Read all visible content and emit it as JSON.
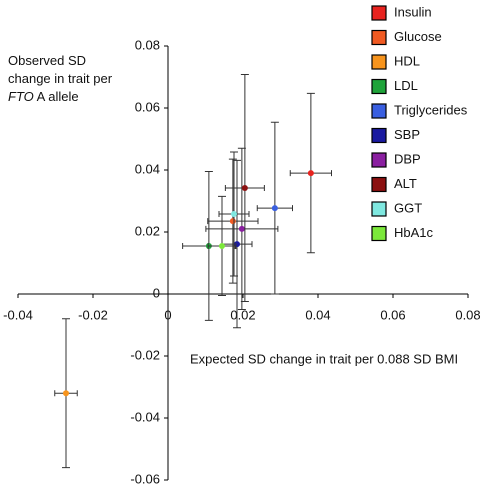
{
  "chart_data": {
    "type": "scatter",
    "xlabel": "Expected SD change in trait per 0.088 SD BMI",
    "ylabel_parts": [
      "Observed SD change in trait per ",
      "FTO",
      " A allele"
    ],
    "xlim": [
      -0.04,
      0.08
    ],
    "xticks": [
      -0.04,
      -0.02,
      0,
      0.02,
      0.04,
      0.06,
      0.08
    ],
    "ylim": [
      -0.06,
      0.08
    ],
    "yticks": [
      -0.06,
      -0.04,
      -0.02,
      0,
      0.02,
      0.04,
      0.06,
      0.08
    ],
    "series": [
      {
        "name": "Insulin",
        "color": "#e8231f",
        "x": [
          0.0381
        ],
        "values": [
          0.039
        ],
        "xerr": [
          0.0055
        ],
        "yerr": [
          0.0257
        ]
      },
      {
        "name": "Glucose",
        "color": "#f05a22",
        "x": [
          0.0173
        ],
        "values": [
          0.0235
        ],
        "xerr": [
          0.0067
        ],
        "yerr": [
          0.02
        ]
      },
      {
        "name": "HDL",
        "color": "#f7941d",
        "x": [
          -0.0272
        ],
        "values": [
          -0.032
        ],
        "xerr": [
          0.003
        ],
        "yerr": [
          0.024
        ]
      },
      {
        "name": "LDL",
        "color": "#1fa33a",
        "x": [
          0.0109
        ],
        "values": [
          0.0155
        ],
        "xerr": [
          0.007
        ],
        "yerr": [
          0.024
        ]
      },
      {
        "name": "Triglycerides",
        "color": "#3a5fe0",
        "x": [
          0.0285
        ],
        "values": [
          0.0277
        ],
        "xerr": [
          0.0047
        ],
        "yerr": [
          0.0277
        ]
      },
      {
        "name": "SBP",
        "color": "#1a1aa0",
        "x": [
          0.0184
        ],
        "values": [
          0.0161
        ],
        "xerr": [
          0.004
        ],
        "yerr": [
          0.027
        ]
      },
      {
        "name": "DBP",
        "color": "#8a1fa0",
        "x": [
          0.0197
        ],
        "values": [
          0.021
        ],
        "xerr": [
          0.0096
        ],
        "yerr": [
          0.026
        ]
      },
      {
        "name": "ALT",
        "color": "#8b1010",
        "x": [
          0.0205
        ],
        "values": [
          0.0342
        ],
        "xerr": [
          0.0052
        ],
        "yerr": [
          0.0366
        ]
      },
      {
        "name": "GGT",
        "color": "#7fe8e0",
        "x": [
          0.0176
        ],
        "values": [
          0.0258
        ],
        "xerr": [
          0.004
        ],
        "yerr": [
          0.02
        ]
      },
      {
        "name": "HbA1c",
        "color": "#7be83a",
        "x": [
          0.0144
        ],
        "values": [
          0.0155
        ],
        "xerr": [
          0.0037
        ],
        "yerr": [
          0.016
        ]
      }
    ]
  }
}
